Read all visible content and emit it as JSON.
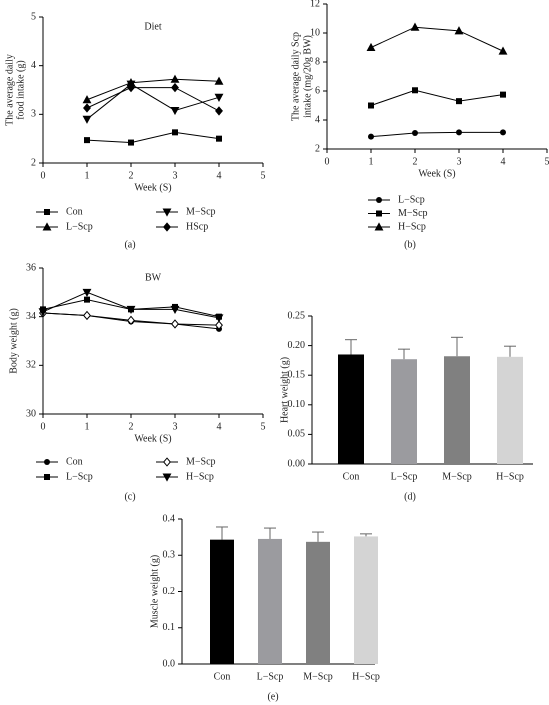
{
  "chart_data": [
    {
      "type": "line",
      "title": "Diet",
      "ylabel": [
        "The average daily",
        "food intake (g)"
      ],
      "xlabel": "Week (S)",
      "label": "(a)",
      "x": [
        1,
        2,
        3,
        4
      ],
      "xlim": [
        0,
        5
      ],
      "xticks": [
        0,
        1,
        2,
        3,
        4,
        5
      ],
      "ylim": [
        2,
        5
      ],
      "yticks": [
        2,
        3,
        4,
        5
      ],
      "series": [
        {
          "name": "Con",
          "marker": "square",
          "color": "#000000",
          "values": [
            2.47,
            2.42,
            2.63,
            2.5
          ]
        },
        {
          "name": "L−Scp",
          "marker": "triangle-up",
          "color": "#000000",
          "values": [
            3.3,
            3.65,
            3.72,
            3.68
          ]
        },
        {
          "name": "M−Scp",
          "marker": "triangle-down",
          "color": "#000000",
          "values": [
            2.9,
            3.62,
            3.08,
            3.35
          ]
        },
        {
          "name": "HScp",
          "marker": "diamond",
          "color": "#000000",
          "values": [
            3.13,
            3.55,
            3.55,
            3.07
          ]
        }
      ]
    },
    {
      "type": "line",
      "ylabel": [
        "The average daily Scp",
        "intake (mg/20g BW)"
      ],
      "xlabel": "Week (S)",
      "label": "(b)",
      "x": [
        1,
        2,
        3,
        4
      ],
      "xlim": [
        0,
        5
      ],
      "xticks": [
        0,
        1,
        2,
        3,
        4,
        5
      ],
      "ylim": [
        2,
        12
      ],
      "yticks": [
        2,
        4,
        6,
        8,
        10,
        12
      ],
      "series": [
        {
          "name": "L−Scp",
          "marker": "circle",
          "color": "#000000",
          "values": [
            2.85,
            3.1,
            3.15,
            3.15
          ]
        },
        {
          "name": "M−Scp",
          "marker": "square",
          "color": "#000000",
          "values": [
            5.0,
            6.05,
            5.3,
            5.75
          ]
        },
        {
          "name": "H−Scp",
          "marker": "triangle-up",
          "color": "#000000",
          "values": [
            9.0,
            10.4,
            10.15,
            8.75
          ]
        }
      ]
    },
    {
      "type": "line",
      "title": "BW",
      "ylabel": [
        "Body weight (g)"
      ],
      "xlabel": "Week (S)",
      "label": "(c)",
      "x": [
        0,
        1,
        2,
        3,
        4
      ],
      "xlim": [
        0,
        5
      ],
      "xticks": [
        0,
        1,
        2,
        3,
        4,
        5
      ],
      "ylim": [
        30,
        36
      ],
      "yticks": [
        30,
        32,
        34,
        36
      ],
      "series": [
        {
          "name": "Con",
          "marker": "circle",
          "color": "#000000",
          "values": [
            34.15,
            34.05,
            33.8,
            33.7,
            33.5
          ]
        },
        {
          "name": "L−Scp",
          "marker": "square",
          "color": "#000000",
          "values": [
            34.3,
            34.7,
            34.3,
            34.4,
            34.0
          ]
        },
        {
          "name": "M−Scp",
          "marker": "diamond-open",
          "color": "#000000",
          "values": [
            34.15,
            34.05,
            33.85,
            33.7,
            33.65
          ]
        },
        {
          "name": "H−Scp",
          "marker": "triangle-down",
          "color": "#000000",
          "values": [
            34.2,
            35.0,
            34.3,
            34.3,
            33.95
          ]
        }
      ]
    },
    {
      "type": "bar",
      "ylabel": [
        "Heart weight (g)"
      ],
      "label": "(d)",
      "categories": [
        "Con",
        "L−Scp",
        "M−Scp",
        "H−Scp"
      ],
      "values": [
        0.185,
        0.177,
        0.182,
        0.181
      ],
      "errors": [
        0.025,
        0.017,
        0.032,
        0.018
      ],
      "colors": [
        "#000000",
        "#9b9b9f",
        "#808080",
        "#d4d4d4"
      ],
      "ylim": [
        0,
        0.25
      ],
      "yticks": [
        {
          "value": 0,
          "label": "0.00"
        },
        0.05,
        {
          "value": 0.1,
          "label": "0.10"
        },
        0.15,
        {
          "value": 0.2,
          "label": "0.20"
        },
        0.25
      ]
    },
    {
      "type": "bar",
      "ylabel": [
        "Muscle weight (g)"
      ],
      "label": "(e)",
      "categories": [
        "Con",
        "L−Scp",
        "M−Scp",
        "H−Scp"
      ],
      "values": [
        0.343,
        0.345,
        0.337,
        0.352
      ],
      "errors": [
        0.035,
        0.03,
        0.027,
        0.007
      ],
      "colors": [
        "#000000",
        "#9b9b9f",
        "#808080",
        "#d4d4d4"
      ],
      "ylim": [
        0,
        0.4
      ],
      "yticks": [
        {
          "value": 0,
          "label": "0.0"
        },
        0.1,
        0.2,
        0.3,
        0.4
      ]
    }
  ]
}
